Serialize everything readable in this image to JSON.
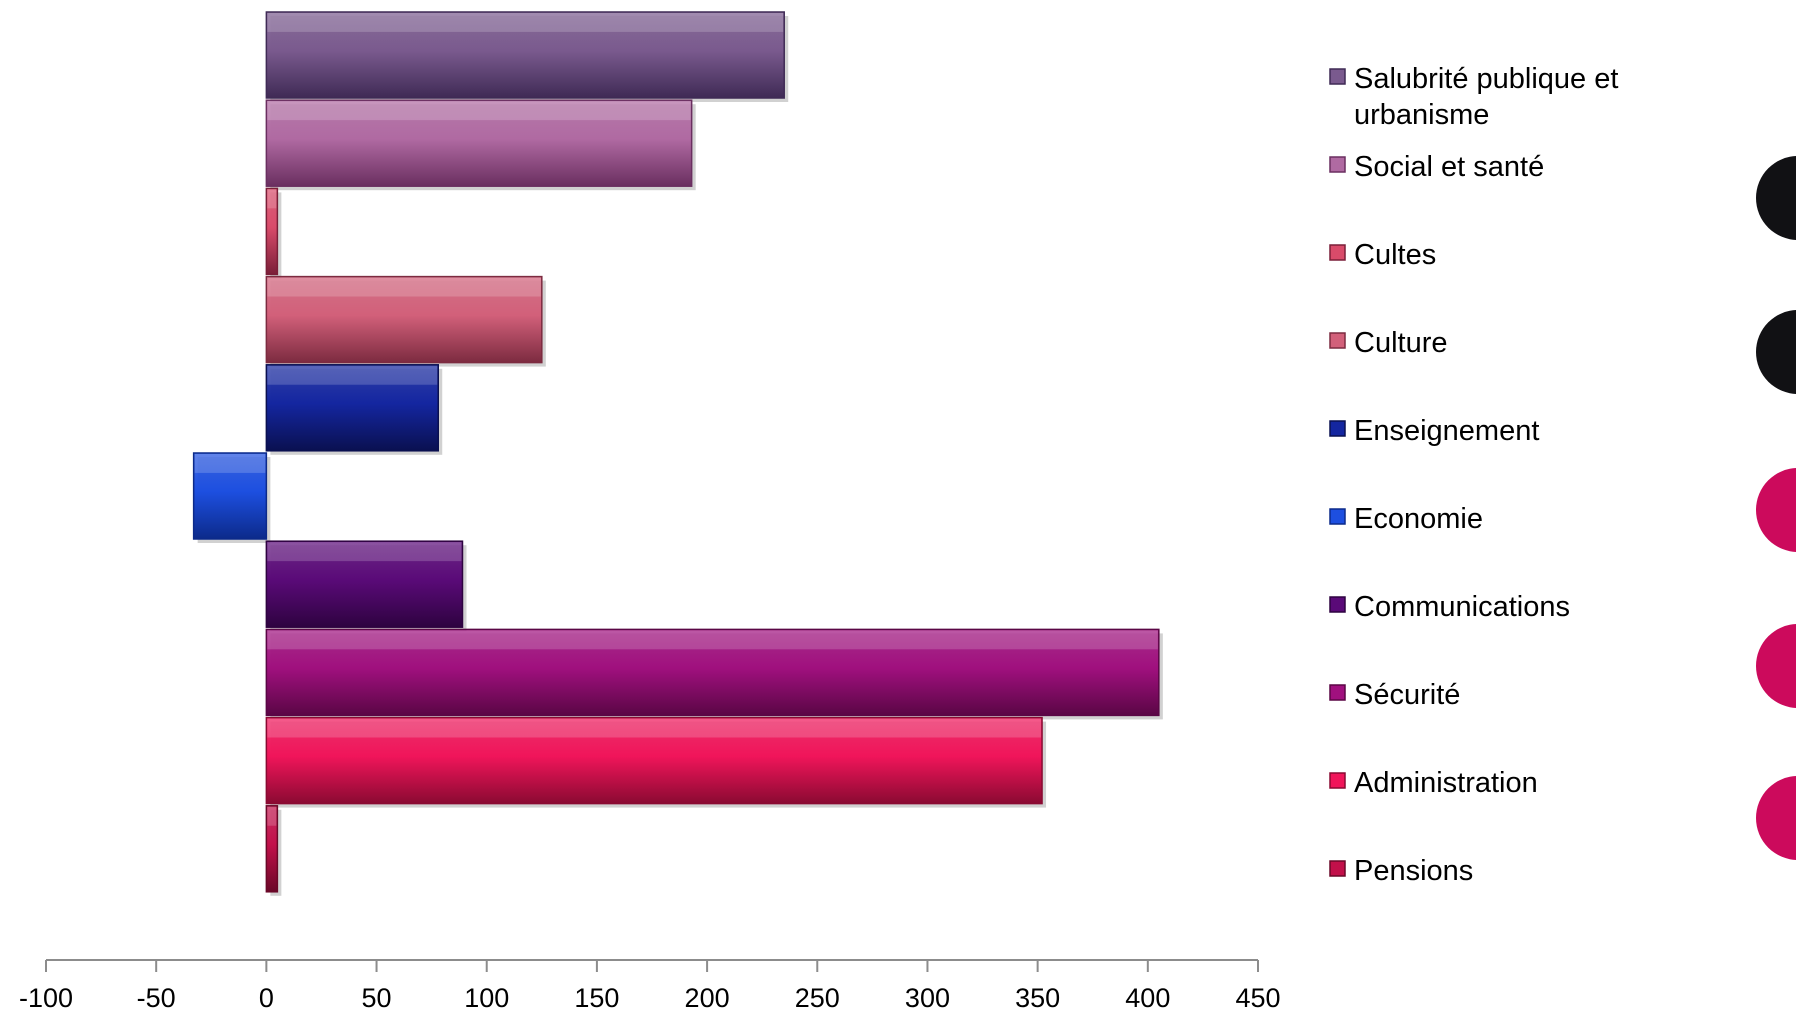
{
  "chart_data": {
    "type": "bar",
    "orientation": "horizontal",
    "title": "",
    "xlabel": "",
    "ylabel": "",
    "xlim": [
      -100,
      450
    ],
    "x_ticks": [
      -100,
      -50,
      0,
      50,
      100,
      150,
      200,
      250,
      300,
      350,
      400,
      450
    ],
    "grid": false,
    "legend_position": "right",
    "series": [
      {
        "name": "Salubrité publique et urbanisme",
        "value": 235,
        "color": "#7a5a8e",
        "color_dark": "#3f2a55"
      },
      {
        "name": "Social et santé",
        "value": 193,
        "color": "#b06aa2",
        "color_dark": "#6a2f60"
      },
      {
        "name": "Cultes",
        "value": 5,
        "color": "#d94b6a",
        "color_dark": "#7a1f38"
      },
      {
        "name": "Culture",
        "value": 125,
        "color": "#d2607a",
        "color_dark": "#7c2b40"
      },
      {
        "name": "Enseignement",
        "value": 78,
        "color": "#1426a0",
        "color_dark": "#0a1050"
      },
      {
        "name": "Economie",
        "value": -33,
        "color": "#1d4fe0",
        "color_dark": "#0c2a8a"
      },
      {
        "name": "Communications",
        "value": 89,
        "color": "#5a0a78",
        "color_dark": "#2e0340"
      },
      {
        "name": "Sécurité",
        "value": 405,
        "color": "#a0107e",
        "color_dark": "#5a0645"
      },
      {
        "name": "Administration",
        "value": 352,
        "color": "#f0155a",
        "color_dark": "#8a0a32"
      },
      {
        "name": "Pensions",
        "value": 5,
        "color": "#c2104a",
        "color_dark": "#6a0828"
      }
    ]
  },
  "decorations": {
    "right_circles": [
      "#111114",
      "#111114",
      "#cc0a5c",
      "#cc0a5c",
      "#cc0a5c"
    ]
  }
}
